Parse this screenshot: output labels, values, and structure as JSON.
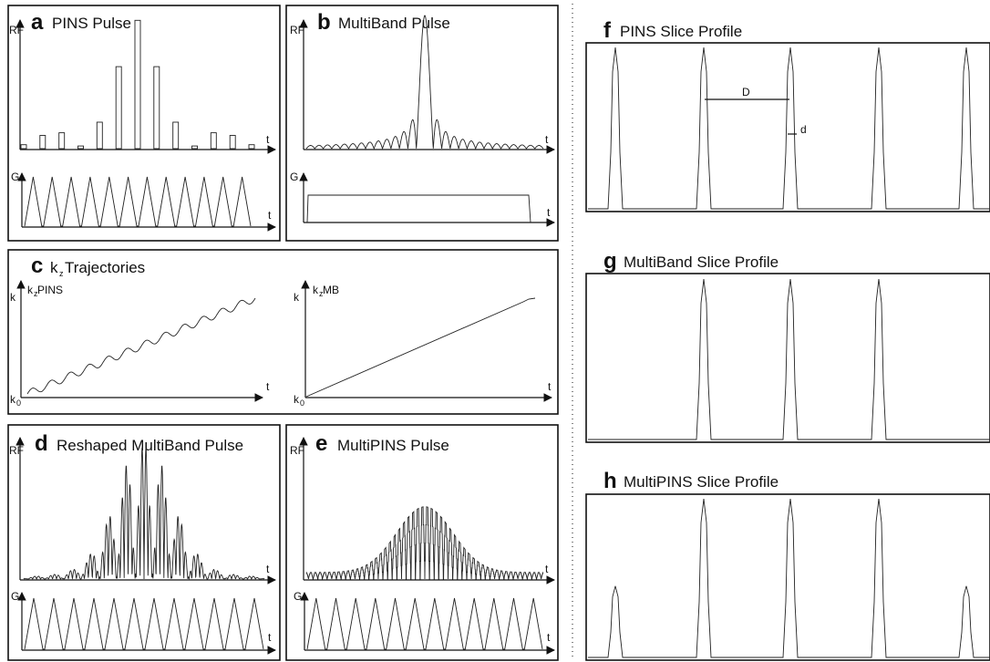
{
  "panels": {
    "a": {
      "letter": "a",
      "title": "PINS Pulse",
      "rf_label": "RF",
      "g_label": "G",
      "t_label": "t"
    },
    "b": {
      "letter": "b",
      "title": "MultiBand Pulse",
      "rf_label": "RF",
      "g_label": "G",
      "t_label": "t"
    },
    "c": {
      "letter": "c",
      "title_k": "k",
      "title_sub": "z",
      "title_rest": " Trajectories",
      "left": {
        "k_label": "k",
        "k0": "k",
        "k0_sub": "0",
        "curve_k": "k",
        "curve_sub": "z",
        "curve_name": " PINS",
        "t_label": "t"
      },
      "right": {
        "k_label": "k",
        "k0": "k",
        "k0_sub": "0",
        "curve_k": "k",
        "curve_sub": "z",
        "curve_name": " MB",
        "t_label": "t"
      }
    },
    "d": {
      "letter": "d",
      "title": "Reshaped MultiBand Pulse",
      "rf_label": "RF",
      "g_label": "G",
      "t_label": "t"
    },
    "e": {
      "letter": "e",
      "title": "MultiPINS Pulse",
      "rf_label": "RF",
      "g_label": "G",
      "t_label": "t"
    },
    "f": {
      "letter": "f",
      "title": "PINS Slice Profile",
      "D_label": "D",
      "d_label": "d",
      "peaks": [
        1.0,
        1.0,
        1.0,
        1.0,
        1.0
      ]
    },
    "g": {
      "letter": "g",
      "title": "MultiBand Slice Profile",
      "peaks": [
        0,
        1.0,
        1.0,
        1.0,
        0
      ]
    },
    "h": {
      "letter": "h",
      "title": "MultiPINS Slice Profile",
      "peaks": [
        0.45,
        1.0,
        1.0,
        1.0,
        0.45
      ]
    }
  },
  "pins_pulse_heights": [
    0.03,
    0.1,
    0.12,
    0.02,
    0.2,
    0.62,
    0.97,
    0.62,
    0.2,
    0.02,
    0.12,
    0.1,
    0.03
  ],
  "gradient_triangles": 12
}
